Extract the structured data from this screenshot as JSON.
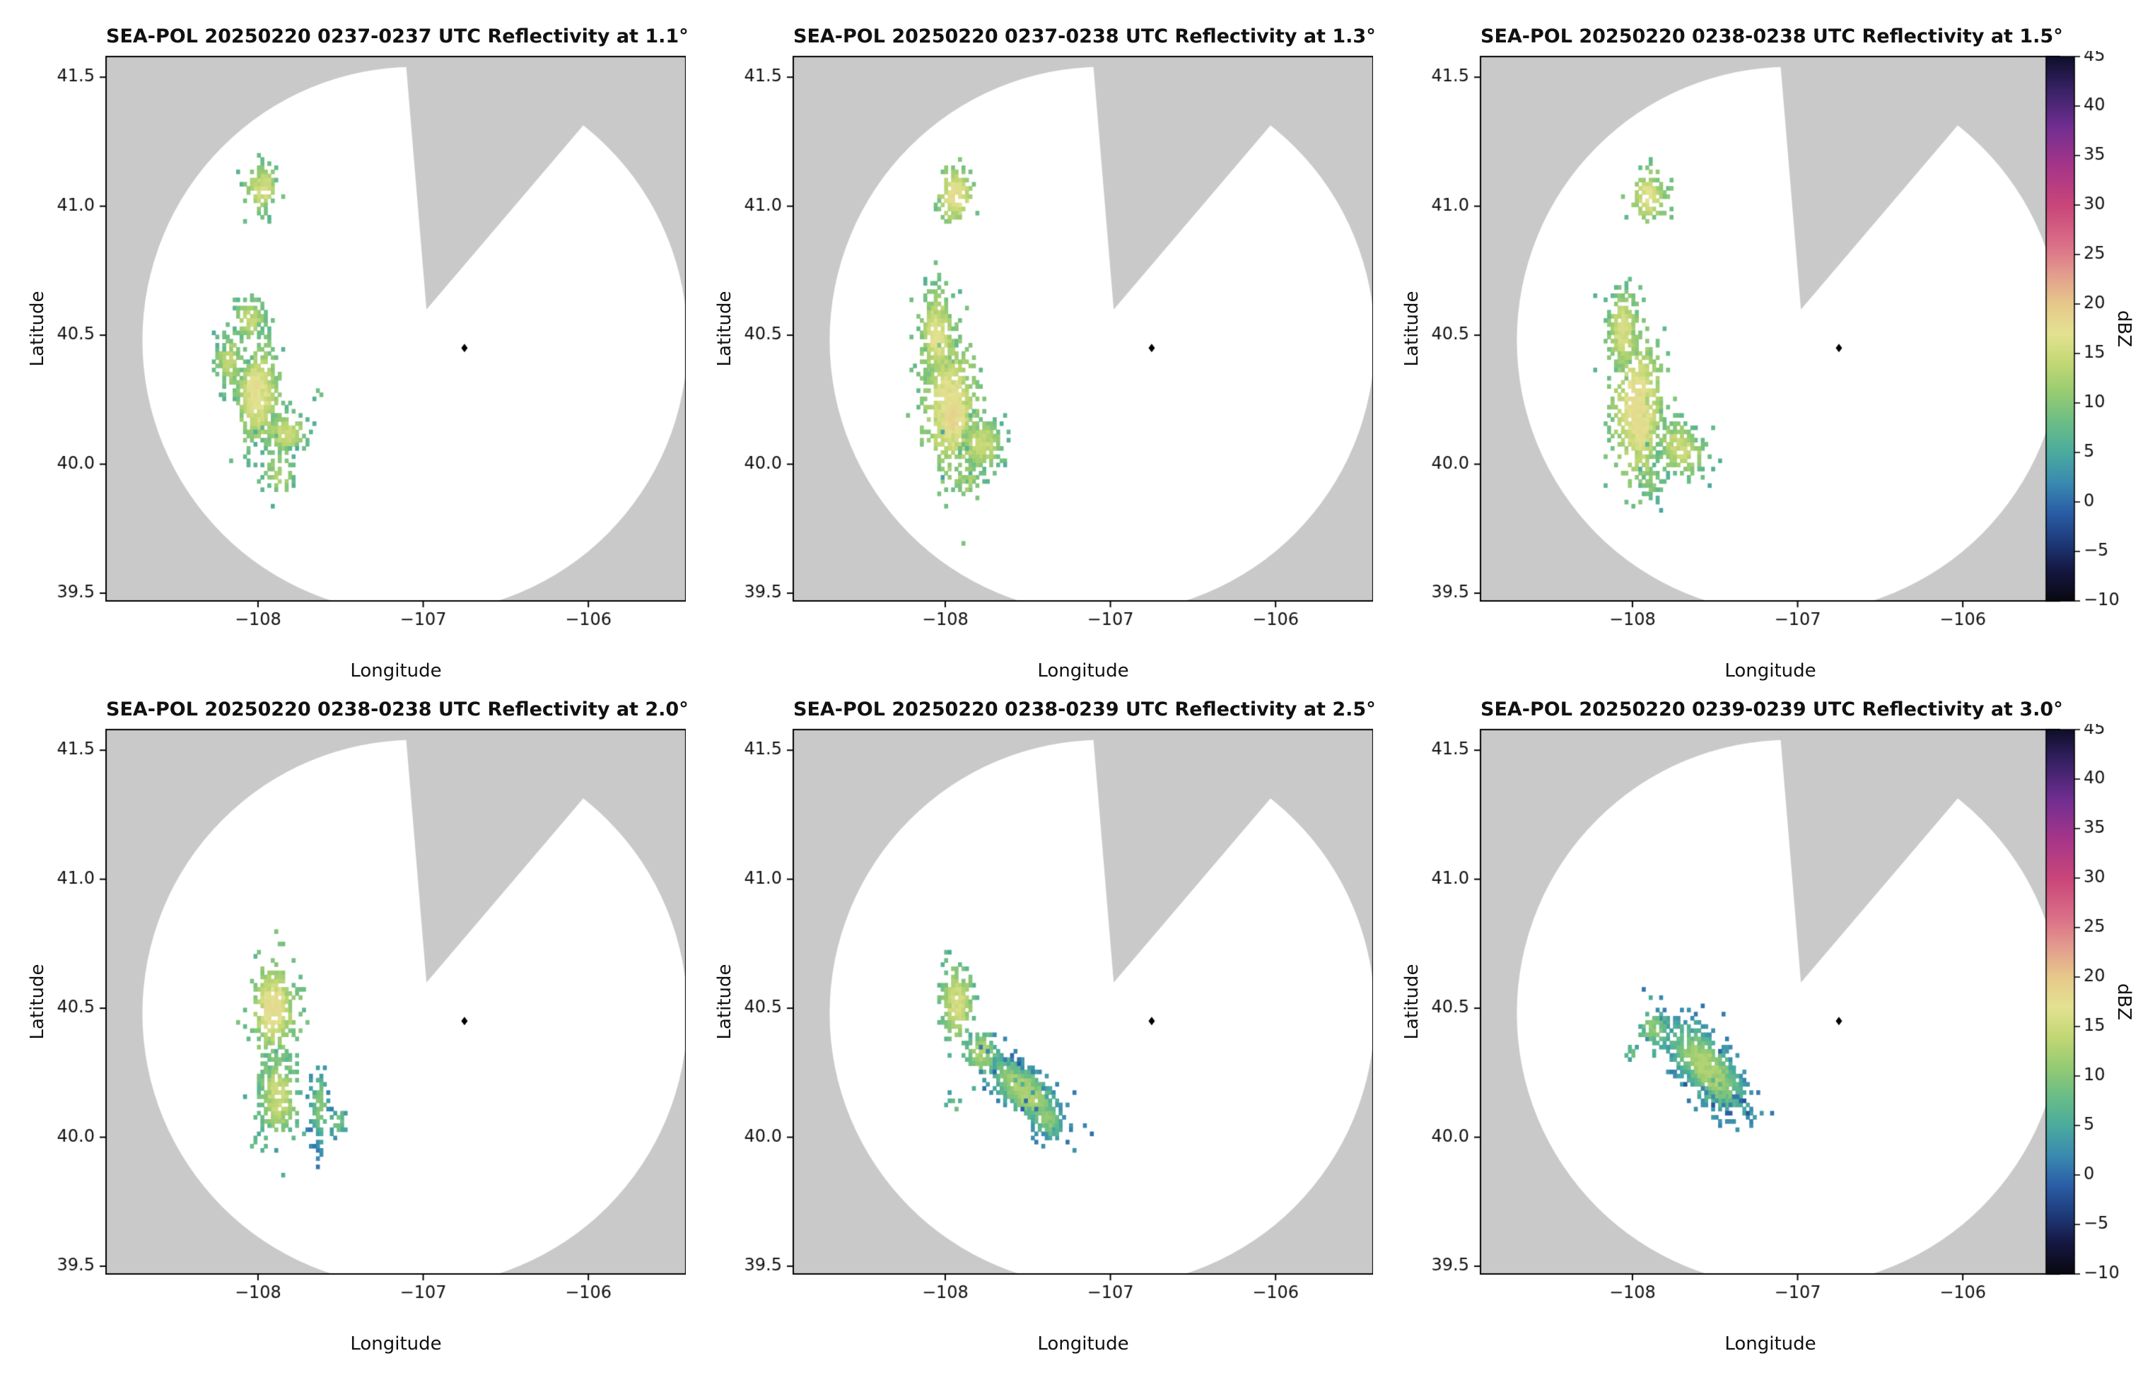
{
  "figure": {
    "instrument": "SEA-POL",
    "date": "20250220",
    "quantity": "Reflectivity",
    "units": "dBZ"
  },
  "chart_data": {
    "type": "heatmap",
    "subtype": "radar-ppi-grid-2x3",
    "axes": {
      "xlabel": "Longitude",
      "ylabel": "Latitude",
      "xlim": [
        -108.92,
        -105.41
      ],
      "ylim": [
        39.47,
        41.58
      ],
      "xticks": [
        {
          "v": -108,
          "label": "−108"
        },
        {
          "v": -107,
          "label": "−107"
        },
        {
          "v": -106,
          "label": "−106"
        }
      ],
      "yticks": [
        {
          "v": 39.5,
          "label": "39.5"
        },
        {
          "v": 40.0,
          "label": "40.0"
        },
        {
          "v": 40.5,
          "label": "40.5"
        },
        {
          "v": 41.0,
          "label": "41.0"
        },
        {
          "v": 41.5,
          "label": "41.5"
        }
      ]
    },
    "colorbar": {
      "label": "dBZ",
      "min": -10,
      "max": 45,
      "ticks": [
        {
          "v": 45,
          "label": "45"
        },
        {
          "v": 40,
          "label": "40"
        },
        {
          "v": 35,
          "label": "35"
        },
        {
          "v": 30,
          "label": "30"
        },
        {
          "v": 25,
          "label": "25"
        },
        {
          "v": 20,
          "label": "20"
        },
        {
          "v": 15,
          "label": "15"
        },
        {
          "v": 10,
          "label": "10"
        },
        {
          "v": 5,
          "label": "5"
        },
        {
          "v": 0,
          "label": "0"
        },
        {
          "v": -5,
          "label": "−5"
        },
        {
          "v": -10,
          "label": "−10"
        }
      ],
      "stops": [
        [
          -10,
          "#08080f"
        ],
        [
          -7,
          "#151640"
        ],
        [
          -4,
          "#1e3a7a"
        ],
        [
          -1,
          "#2a5ea6"
        ],
        [
          2,
          "#3a8ab0"
        ],
        [
          5,
          "#4aab9e"
        ],
        [
          8,
          "#6abd86"
        ],
        [
          11,
          "#96cb72"
        ],
        [
          14,
          "#c2d774"
        ],
        [
          17,
          "#e3e291"
        ],
        [
          20,
          "#e6c98a"
        ],
        [
          23,
          "#e39d8d"
        ],
        [
          26,
          "#db6f88"
        ],
        [
          30,
          "#c94679"
        ],
        [
          34,
          "#a63589"
        ],
        [
          38,
          "#702e91"
        ],
        [
          42,
          "#342061"
        ],
        [
          45,
          "#0f0f2b"
        ]
      ]
    },
    "radar": {
      "marker": [
        -106.75,
        40.45
      ],
      "coverage_center": [
        -107.05,
        40.48
      ],
      "coverage_rx": 1.65,
      "coverage_ry": 1.06,
      "wedge_apex": [
        -106.98,
        40.6
      ],
      "wedge_left_top": [
        -107.13,
        41.75
      ],
      "wedge_right_top": [
        -105.45,
        41.75
      ]
    },
    "colors": {
      "masked": "#c9c9c9",
      "valid": "#ffffff",
      "marker": "#000000",
      "frame": "#000000"
    },
    "cluster_format": [
      "center_lon",
      "center_lat",
      "sigma_lon",
      "sigma_lat",
      "rotation_deg",
      "n_gates",
      "dbz_min",
      "dbz_max",
      "sparse"
    ],
    "panels": [
      {
        "title": "SEA-POL 20250220 0237-0237 UTC Reflectivity at 1.1°",
        "time_utc": "0237-0237",
        "elevation_deg": 1.1,
        "clusters": [
          [
            -107.97,
            41.07,
            0.05,
            0.045,
            0,
            110,
            7,
            15,
            0
          ],
          [
            -108.05,
            40.56,
            0.05,
            0.035,
            0,
            90,
            7,
            14,
            0
          ],
          [
            -108.17,
            40.4,
            0.05,
            0.055,
            0,
            120,
            6,
            13,
            0
          ],
          [
            -108.0,
            40.27,
            0.07,
            0.11,
            0,
            420,
            7,
            16,
            0
          ],
          [
            -108.02,
            40.3,
            0.035,
            0.05,
            0,
            90,
            12,
            17,
            0
          ],
          [
            -107.83,
            40.12,
            0.07,
            0.045,
            0,
            150,
            6,
            14,
            0
          ],
          [
            -107.87,
            39.97,
            0.06,
            0.05,
            0,
            90,
            5,
            12,
            1
          ],
          [
            -107.63,
            40.28,
            0.015,
            0.015,
            0,
            10,
            6,
            10,
            1
          ]
        ]
      },
      {
        "title": "SEA-POL 20250220 0237-0238 UTC Reflectivity at 1.3°",
        "time_utc": "0237-0238",
        "elevation_deg": 1.3,
        "clusters": [
          [
            -107.94,
            41.04,
            0.05,
            0.055,
            0,
            130,
            8,
            17,
            0
          ],
          [
            -108.05,
            40.5,
            0.055,
            0.09,
            0,
            280,
            7,
            16,
            0
          ],
          [
            -107.97,
            40.22,
            0.08,
            0.13,
            0,
            520,
            8,
            17,
            0
          ],
          [
            -107.95,
            40.18,
            0.04,
            0.06,
            0,
            130,
            13,
            18,
            0
          ],
          [
            -107.78,
            40.08,
            0.07,
            0.055,
            0,
            200,
            6,
            14,
            0
          ],
          [
            -107.87,
            39.94,
            0.055,
            0.045,
            0,
            110,
            5,
            12,
            1
          ]
        ]
      },
      {
        "title": "SEA-POL 20250220 0238-0238 UTC Reflectivity at 1.5°",
        "time_utc": "0238-0238",
        "elevation_deg": 1.5,
        "clusters": [
          [
            -107.91,
            41.04,
            0.05,
            0.05,
            0,
            120,
            8,
            16,
            0
          ],
          [
            -108.06,
            40.52,
            0.05,
            0.08,
            0,
            240,
            7,
            15,
            0
          ],
          [
            -107.97,
            40.22,
            0.08,
            0.14,
            0,
            500,
            8,
            17,
            0
          ],
          [
            -107.95,
            40.14,
            0.04,
            0.06,
            0,
            120,
            12,
            17,
            0
          ],
          [
            -107.71,
            40.06,
            0.085,
            0.05,
            -20,
            190,
            6,
            14,
            0
          ],
          [
            -107.89,
            39.93,
            0.05,
            0.04,
            0,
            70,
            5,
            10,
            1
          ]
        ]
      },
      {
        "title": "SEA-POL 20250220 0238-0238 UTC Reflectivity at 2.0°",
        "time_utc": "0238-0238",
        "elevation_deg": 2.0,
        "clusters": [
          [
            -107.91,
            40.5,
            0.065,
            0.085,
            0,
            320,
            8,
            17,
            0
          ],
          [
            -107.88,
            40.16,
            0.06,
            0.08,
            0,
            260,
            6,
            14,
            0
          ],
          [
            -107.63,
            40.12,
            0.03,
            0.075,
            0,
            100,
            1,
            9,
            0
          ],
          [
            -107.52,
            40.06,
            0.03,
            0.03,
            0,
            40,
            2,
            8,
            1
          ],
          [
            -108.0,
            39.97,
            0.03,
            0.02,
            0,
            20,
            5,
            9,
            1
          ]
        ]
      },
      {
        "title": "SEA-POL 20250220 0238-0239 UTC Reflectivity at 2.5°",
        "time_utc": "0238-0239",
        "elevation_deg": 2.5,
        "clusters": [
          [
            -107.93,
            40.52,
            0.05,
            0.075,
            0,
            220,
            6,
            15,
            0
          ],
          [
            -107.78,
            40.33,
            0.045,
            0.04,
            0,
            90,
            5,
            12,
            0
          ],
          [
            -107.52,
            40.18,
            0.13,
            0.05,
            -28,
            400,
            1,
            12,
            0
          ],
          [
            -107.55,
            40.22,
            0.08,
            0.03,
            -28,
            130,
            -1,
            6,
            0
          ],
          [
            -107.38,
            40.07,
            0.05,
            0.035,
            -20,
            90,
            2,
            10,
            0
          ],
          [
            -107.95,
            40.12,
            0.03,
            0.025,
            0,
            22,
            4,
            8,
            1
          ]
        ]
      },
      {
        "title": "SEA-POL 20250220 0239-0239 UTC Reflectivity at 3.0°",
        "time_utc": "0239-0239",
        "elevation_deg": 3.0,
        "clusters": [
          [
            -107.55,
            40.27,
            0.15,
            0.06,
            -33,
            560,
            1,
            12,
            0
          ],
          [
            -107.5,
            40.21,
            0.09,
            0.035,
            -33,
            220,
            -2,
            6,
            0
          ],
          [
            -107.87,
            40.42,
            0.045,
            0.035,
            0,
            70,
            4,
            10,
            0
          ],
          [
            -108.0,
            40.33,
            0.02,
            0.02,
            0,
            15,
            4,
            8,
            1
          ]
        ]
      }
    ]
  }
}
